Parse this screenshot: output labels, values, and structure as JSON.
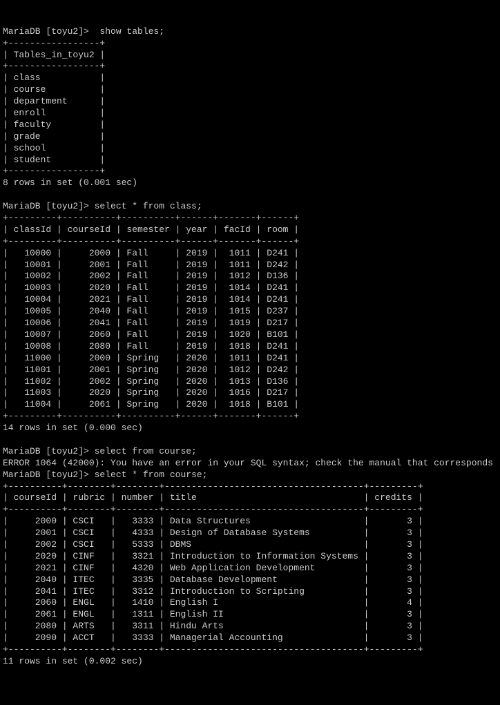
{
  "prompt_prefix": "MariaDB [toyu2]>",
  "cmd_show_tables": "  show tables;",
  "tables_header": "Tables_in_toyu2",
  "tables": [
    "class",
    "course",
    "department",
    "enroll",
    "faculty",
    "grade",
    "school",
    "student"
  ],
  "tables_result": "8 rows in set (0.001 sec)",
  "cmd_select_class": " select * from class;",
  "class_headers": [
    "classId",
    "courseId",
    "semester",
    "year",
    "facId",
    "room"
  ],
  "class_sep": "+---------+----------+----------+------+-------+------+",
  "class_rows": [
    [
      "10000",
      "2000",
      "Fall    ",
      "2019",
      "1011",
      "D241"
    ],
    [
      "10001",
      "2001",
      "Fall    ",
      "2019",
      "1011",
      "D242"
    ],
    [
      "10002",
      "2002",
      "Fall    ",
      "2019",
      "1012",
      "D136"
    ],
    [
      "10003",
      "2020",
      "Fall    ",
      "2019",
      "1014",
      "D241"
    ],
    [
      "10004",
      "2021",
      "Fall    ",
      "2019",
      "1014",
      "D241"
    ],
    [
      "10005",
      "2040",
      "Fall    ",
      "2019",
      "1015",
      "D237"
    ],
    [
      "10006",
      "2041",
      "Fall    ",
      "2019",
      "1019",
      "D217"
    ],
    [
      "10007",
      "2060",
      "Fall    ",
      "2019",
      "1020",
      "B101"
    ],
    [
      "10008",
      "2080",
      "Fall    ",
      "2019",
      "1018",
      "D241"
    ],
    [
      "11000",
      "2000",
      "Spring  ",
      "2020",
      "1011",
      "D241"
    ],
    [
      "11001",
      "2001",
      "Spring  ",
      "2020",
      "1012",
      "D242"
    ],
    [
      "11002",
      "2002",
      "Spring  ",
      "2020",
      "1013",
      "D136"
    ],
    [
      "11003",
      "2020",
      "Spring  ",
      "2020",
      "1016",
      "D217"
    ],
    [
      "11004",
      "2061",
      "Spring  ",
      "2020",
      "1018",
      "B101"
    ]
  ],
  "class_result": "14 rows in set (0.000 sec)",
  "cmd_select_course_err": " select from course;",
  "error_line": "ERROR 1064 (42000): You have an error in your SQL syntax; check the manual that corresponds",
  "cmd_select_course": " select * from course;",
  "course_headers": [
    "courseId",
    "rubric",
    "number",
    "title",
    "credits"
  ],
  "course_sep": "+----------+--------+--------+-------------------------------------+---------+",
  "course_rows": [
    [
      "2000",
      "CSCI  ",
      "3333",
      "Data Structures                     ",
      "3"
    ],
    [
      "2001",
      "CSCI  ",
      "4333",
      "Design of Database Systems          ",
      "3"
    ],
    [
      "2002",
      "CSCI  ",
      "5333",
      "DBMS                                ",
      "3"
    ],
    [
      "2020",
      "CINF  ",
      "3321",
      "Introduction to Information Systems ",
      "3"
    ],
    [
      "2021",
      "CINF  ",
      "4320",
      "Web Application Development         ",
      "3"
    ],
    [
      "2040",
      "ITEC  ",
      "3335",
      "Database Development                ",
      "3"
    ],
    [
      "2041",
      "ITEC  ",
      "3312",
      "Introduction to Scripting           ",
      "3"
    ],
    [
      "2060",
      "ENGL  ",
      "1410",
      "English I                           ",
      "4"
    ],
    [
      "2061",
      "ENGL  ",
      "1311",
      "English II                          ",
      "3"
    ],
    [
      "2080",
      "ARTS  ",
      "3311",
      "Hindu Arts                          ",
      "3"
    ],
    [
      "2090",
      "ACCT  ",
      "3333",
      "Managerial Accounting               ",
      "3"
    ]
  ],
  "course_result": "11 rows in set (0.002 sec)",
  "tables_sep": "+-----------------+",
  "tables_header_line": "| Tables_in_toyu2 |",
  "class_header_line": "| classId | courseId | semester | year | facId | room |",
  "course_header_line": "| courseId | rubric | number | title                               | credits |"
}
